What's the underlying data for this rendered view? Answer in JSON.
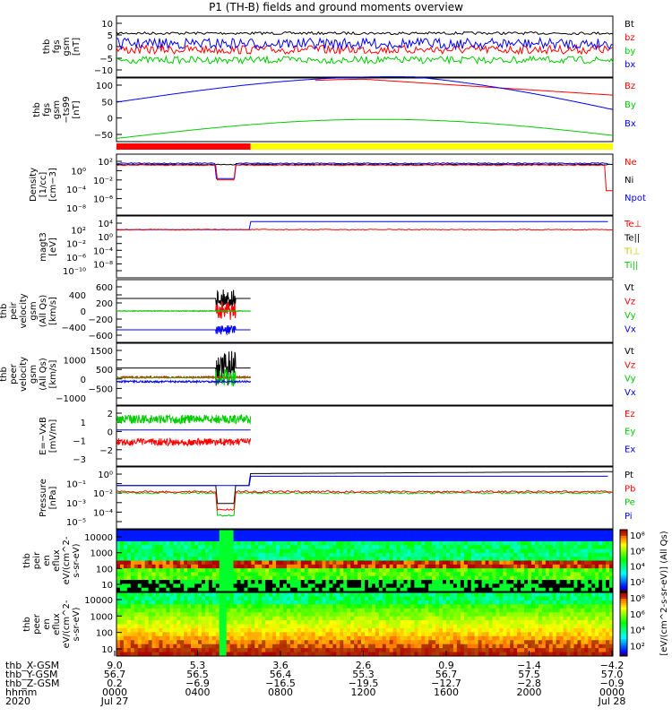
{
  "title": "P1 (TH-B) fields and ground moments overview",
  "chart_data": [
    {
      "type": "line",
      "ylabel": "thb fgs gsm [nT]",
      "ylim": [
        -10,
        10
      ],
      "yticks": [
        "10",
        "5",
        "0",
        "−5",
        "−10"
      ],
      "legend": [
        {
          "t": "Bt",
          "c": "#000000"
        },
        {
          "t": "bz",
          "c": "#ff0000"
        },
        {
          "t": "by",
          "c": "#00cc00"
        },
        {
          "t": "bx",
          "c": "#0000ff"
        }
      ],
      "series": [
        {
          "name": "Bt",
          "level": 5
        },
        {
          "name": "bz",
          "level": 0.5
        },
        {
          "name": "by",
          "level": -3
        },
        {
          "name": "bx",
          "level": 3
        }
      ]
    },
    {
      "type": "line",
      "ylabel": "thb fgs gsm −ts99 [nT]",
      "ylim": [
        -75,
        100
      ],
      "yticks": [
        "100",
        "50",
        "0",
        "−50"
      ],
      "legend": [
        {
          "t": "Bz",
          "c": "#ff0000"
        },
        {
          "t": "By",
          "c": "#00cc00"
        },
        {
          "t": "Bx",
          "c": "#0000ff"
        }
      ]
    },
    {
      "type": "line",
      "ylabel": "Density [1/cc] [cm−3]",
      "scale": "log",
      "yticks": [
        "10²",
        "10⁰",
        "10⁻²",
        "10⁻⁴",
        "10⁻⁶",
        "10⁻⁸"
      ],
      "legend": [
        {
          "t": "Ne",
          "c": "#ff0000"
        },
        {
          "t": "Ni",
          "c": "#000000"
        },
        {
          "t": "Npot",
          "c": "#0000ff"
        }
      ]
    },
    {
      "type": "line",
      "ylabel": "magt3 [eV]",
      "scale": "log",
      "yticks": [
        "10⁴",
        "10²",
        "10⁰",
        "10⁻²",
        "10⁻⁴",
        "10⁻⁶",
        "10⁻⁸",
        "10⁻¹⁰"
      ],
      "legend": [
        {
          "t": "Te⊥",
          "c": "#ff0000"
        },
        {
          "t": "Te||",
          "c": "#000000"
        },
        {
          "t": "Ti⊥",
          "c": "#cccc00"
        },
        {
          "t": "Ti||",
          "c": "#00cc00"
        }
      ]
    },
    {
      "type": "line",
      "ylabel": "thb peir velocity gsm (All Qs) [km/s]",
      "ylim": [
        -600,
        600
      ],
      "yticks": [
        "600",
        "400",
        "200",
        "0",
        "−200",
        "−400",
        "−600"
      ],
      "legend": [
        {
          "t": "Vt",
          "c": "#000000"
        },
        {
          "t": "Vz",
          "c": "#ff0000"
        },
        {
          "t": "Vy",
          "c": "#00cc00"
        },
        {
          "t": "Vx",
          "c": "#0000ff"
        }
      ]
    },
    {
      "type": "line",
      "ylabel": "thb peer velocity gsm (All Qs) [km/s]",
      "ylim": [
        -1500,
        1500
      ],
      "yticks": [
        "1500",
        "1000",
        "500",
        "0",
        "−500",
        "−1000"
      ],
      "legend": [
        {
          "t": "Vt",
          "c": "#000000"
        },
        {
          "t": "Vz",
          "c": "#ff0000"
        },
        {
          "t": "Vy",
          "c": "#00cc00"
        },
        {
          "t": "Vx",
          "c": "#0000ff"
        }
      ]
    },
    {
      "type": "line",
      "ylabel": "E=−VxB [mV/m]",
      "ylim": [
        -3,
        2
      ],
      "yticks": [
        "2",
        "1",
        "0",
        "−1",
        "−2",
        "−3"
      ],
      "legend": [
        {
          "t": "Ez",
          "c": "#ff0000"
        },
        {
          "t": "Ey",
          "c": "#00cc00"
        },
        {
          "t": "Ex",
          "c": "#0000ff"
        }
      ]
    },
    {
      "type": "line",
      "ylabel": "Pressure [nPa]",
      "scale": "log",
      "yticks": [
        "10⁰",
        "10⁻¹",
        "10⁻²",
        "10⁻³",
        "10⁻⁴",
        "10⁻⁵"
      ],
      "legend": [
        {
          "t": "Pt",
          "c": "#000000"
        },
        {
          "t": "Pb",
          "c": "#ff0000"
        },
        {
          "t": "Pe",
          "c": "#00cc00"
        },
        {
          "t": "Pi",
          "c": "#0000ff"
        }
      ]
    },
    {
      "type": "heatmap",
      "ylabel": "thb peir en eflux eV/(cm^2-s-sr-eV)",
      "yticks": [
        "10000",
        "1000",
        "100",
        "10"
      ],
      "colorbar": [
        "10⁸",
        "10⁶",
        "10⁴",
        "10²"
      ]
    },
    {
      "type": "heatmap",
      "ylabel": "thb peer en eflux eV/(cm^2-s-sr-eV)",
      "yticks": [
        "10000",
        "1000",
        "100",
        "10"
      ],
      "colorbar": [
        "10⁸",
        "10⁶",
        "10⁴",
        "10²"
      ]
    }
  ],
  "colorbar_label": "[eV/(cm^2-s-sr-eV)] (All Qs)",
  "xaxis": {
    "row_labels": [
      "thb_X-GSM",
      "thb_Y-GSM",
      "thb_Z-GSM",
      "hhmm",
      "2020"
    ],
    "columns": [
      [
        "9.0",
        "56.7",
        "0.2",
        "0000",
        "Jul 27"
      ],
      [
        "5.3",
        "56.5",
        "−6.9",
        "0400",
        ""
      ],
      [
        "3.6",
        "56.4",
        "−16.5",
        "0800",
        ""
      ],
      [
        "2.6",
        "55.3",
        "−19.5",
        "1200",
        ""
      ],
      [
        "0.9",
        "56.7",
        "−12.7",
        "1600",
        ""
      ],
      [
        "−1.4",
        "57.5",
        "−2.8",
        "2000",
        ""
      ],
      [
        "−4.2",
        "57.0",
        "−0.9",
        "0000",
        "Jul 28"
      ]
    ]
  }
}
